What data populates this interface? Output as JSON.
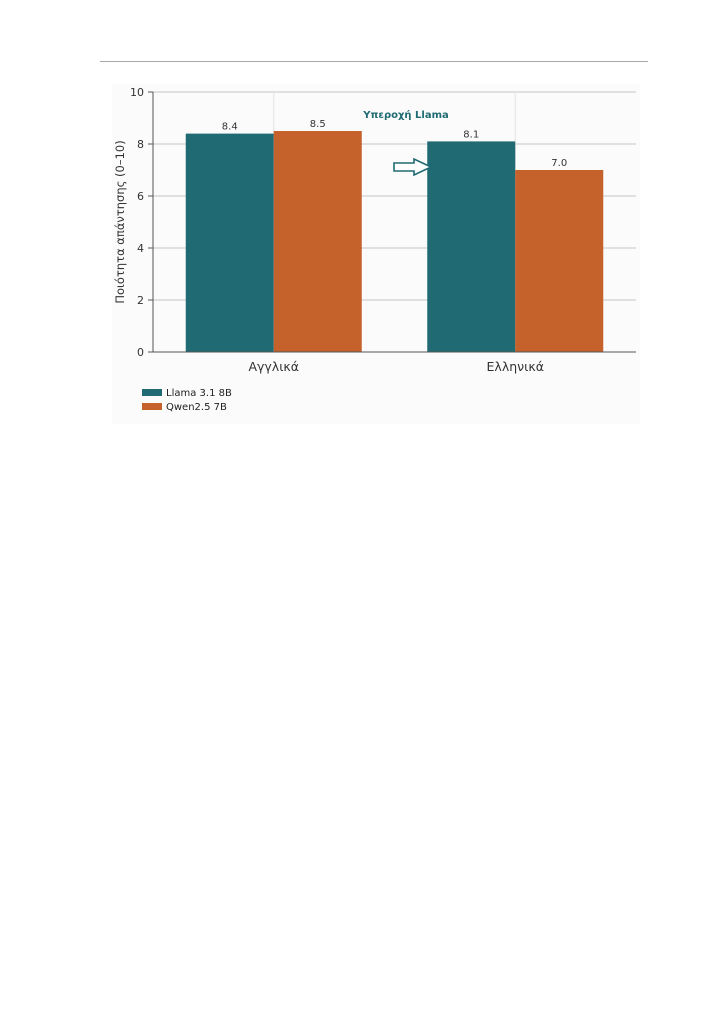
{
  "chart_data": {
    "type": "bar",
    "categories": [
      "Αγγλικά",
      "Ελληνικά"
    ],
    "series": [
      {
        "name": "Llama 3.1 8B",
        "values": [
          8.4,
          8.1
        ],
        "color": "#206b73"
      },
      {
        "name": "Qwen2.5 7B",
        "values": [
          8.5,
          7.0
        ],
        "color": "#c5612a"
      }
    ],
    "ylabel": "Ποιότητα απάντησης (0–10)",
    "ylim": [
      0,
      10
    ],
    "yticks": [
      "0",
      "2",
      "4",
      "6",
      "8",
      "10"
    ],
    "data_labels": [
      [
        "8.4",
        "8.1"
      ],
      [
        "8.5",
        "7.0"
      ]
    ],
    "grid": "horizontal",
    "legend": "bottom-left",
    "annotation": {
      "text": "Υπεροχή Llama",
      "points_to": "Ελληνικά",
      "color": "#206b73"
    }
  }
}
